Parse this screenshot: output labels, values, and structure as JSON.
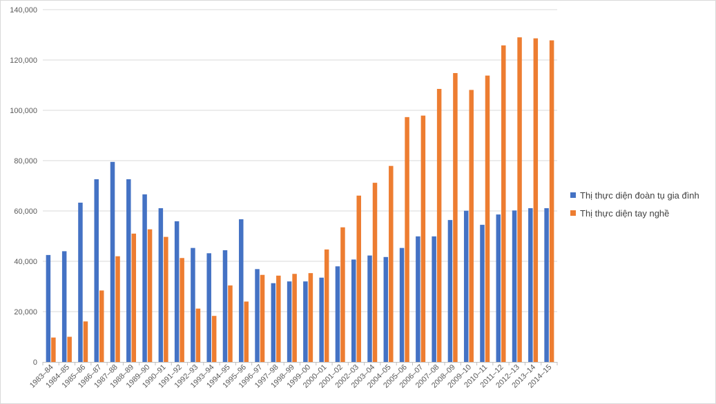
{
  "chart_data": {
    "type": "bar",
    "title": "",
    "xlabel": "",
    "ylabel": "",
    "ylim": [
      0,
      140000
    ],
    "yticks": [
      0,
      20000,
      40000,
      60000,
      80000,
      100000,
      120000,
      140000
    ],
    "ytick_labels": [
      "0",
      "20,000",
      "40,000",
      "60,000",
      "80,000",
      "100,000",
      "120,000",
      "140,000"
    ],
    "grid": true,
    "legend_position": "right",
    "categories": [
      "1983–84",
      "1984–85",
      "1985–86",
      "1986–87",
      "1987–88",
      "1988–89",
      "1989–90",
      "1990–91",
      "1991–92",
      "1992–93",
      "1993–94",
      "1994–95",
      "1995–96",
      "1996–97",
      "1997–98",
      "1998–99",
      "1999–00",
      "2000–01",
      "2001–02",
      "2002–03",
      "2003–04",
      "2004–05",
      "2005–06",
      "2006–07",
      "2007–08",
      "2008–09",
      "2009–10",
      "2010–11",
      "2011–12",
      "2012–13",
      "2013–14",
      "2014–15"
    ],
    "series": [
      {
        "name": "Thị thực diện đoàn tụ gia đình",
        "color": "#4472c4",
        "values": [
          42500,
          44000,
          63300,
          72600,
          79500,
          72600,
          66600,
          61100,
          55900,
          45300,
          43200,
          44400,
          56700,
          36900,
          31300,
          32000,
          32000,
          33500,
          38000,
          40700,
          42300,
          41700,
          45300,
          49900,
          49900,
          56400,
          60100,
          54500,
          58600,
          60200,
          61100,
          61100
        ]
      },
      {
        "name": "Thị thực diện tay nghề",
        "color": "#ed7d31",
        "values": [
          9700,
          10000,
          16100,
          28400,
          42000,
          51000,
          52700,
          49700,
          41300,
          21200,
          18300,
          30400,
          24000,
          34600,
          34300,
          35000,
          35300,
          44700,
          53500,
          66100,
          71200,
          77900,
          97300,
          97900,
          108500,
          114800,
          108100,
          113800,
          125800,
          129000,
          128600,
          127800
        ]
      }
    ]
  }
}
